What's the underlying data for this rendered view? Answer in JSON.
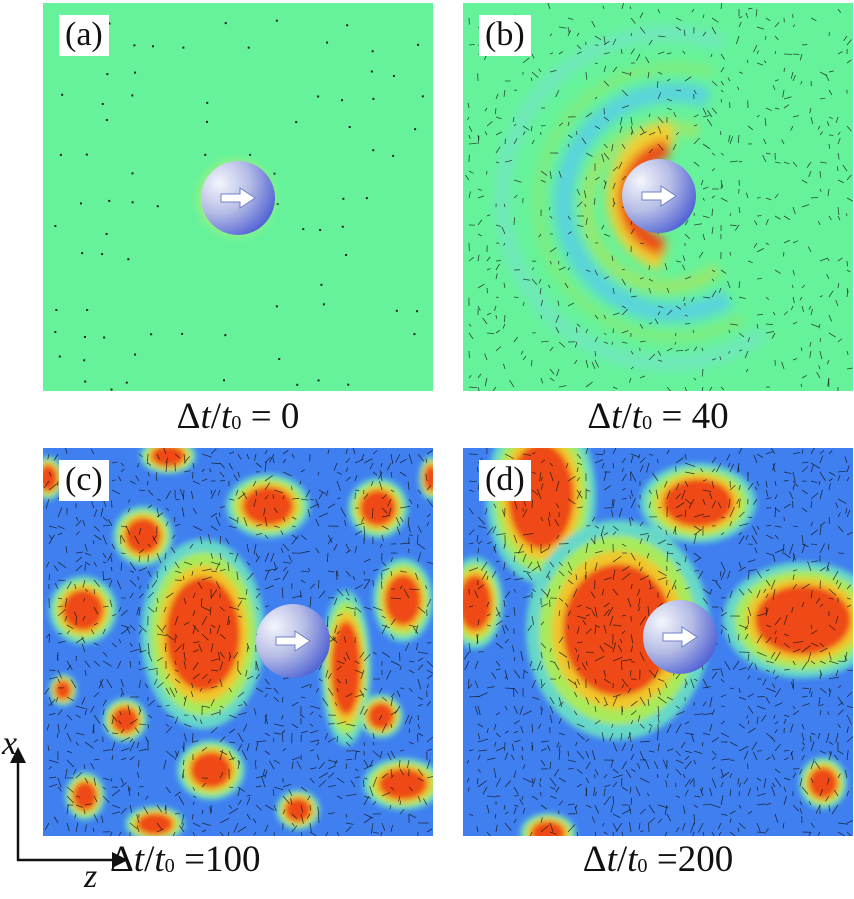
{
  "panels": [
    {
      "label": "(a)",
      "caption_delta": "Δ",
      "caption_t": "t",
      "caption_slash": "/",
      "caption_t0": "t",
      "caption_sub": "0",
      "caption_eq": " = ",
      "caption_value": "0"
    },
    {
      "label": "(b)",
      "caption_delta": "Δ",
      "caption_t": "t",
      "caption_slash": "/",
      "caption_t0": "t",
      "caption_sub": "0",
      "caption_eq": " = ",
      "caption_value": "40"
    },
    {
      "label": "(c)",
      "caption_delta": "Δ",
      "caption_t": "t",
      "caption_slash": "/",
      "caption_t0": "t",
      "caption_sub": "0",
      "caption_eq": " =",
      "caption_value": "100"
    },
    {
      "label": "(d)",
      "caption_delta": "Δ",
      "caption_t": "t",
      "caption_slash": "/",
      "caption_t0": "t",
      "caption_sub": "0",
      "caption_eq": " =",
      "caption_value": "200"
    }
  ],
  "axes": {
    "vertical": "x",
    "horizontal": "z"
  },
  "colors": {
    "background_green": "#66f29a",
    "background_blue": "#3f7ff0",
    "domain_red": "#ee4a14",
    "domain_orange": "#f7a41c",
    "domain_yellow": "#d8ee48",
    "ring_cyan": "#68e0d4",
    "particle_light": "#f2f3fb",
    "particle_dark": "#3c50d2",
    "arrow": "#ffffff",
    "vector": "#111111"
  }
}
